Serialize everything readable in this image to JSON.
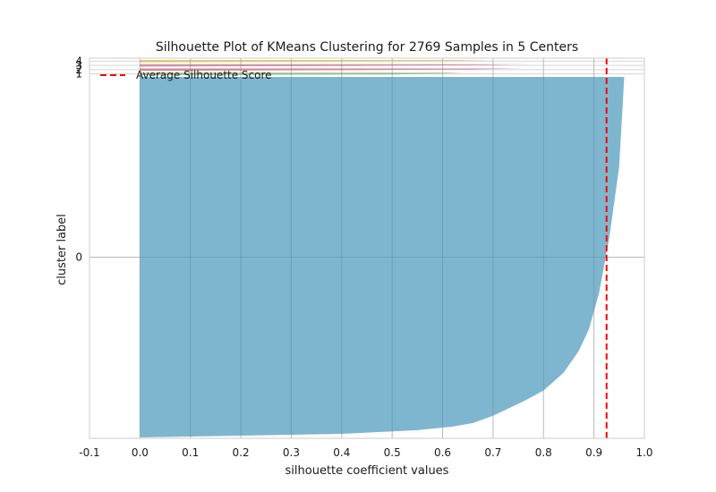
{
  "chart_data": {
    "type": "area",
    "title": "Silhouette Plot of KMeans Clustering for 2769 Samples in 5 Centers",
    "xlabel": "silhouette coefficient values",
    "ylabel": "cluster label",
    "xlim": [
      -0.1,
      1.0
    ],
    "x_ticks": [
      "-0.1",
      "0.0",
      "0.1",
      "0.2",
      "0.3",
      "0.4",
      "0.5",
      "0.6",
      "0.7",
      "0.8",
      "0.9",
      "1.0"
    ],
    "y_tick_labels": [
      "0",
      "1",
      "2",
      "3",
      "4"
    ],
    "grid": true,
    "legend": {
      "position": "upper-left",
      "entries": [
        "Average Silhouette Score"
      ]
    },
    "average_silhouette_score": 0.925,
    "clusters": [
      {
        "label": "0",
        "color": "#7fb6cf",
        "size": 2712,
        "profile": [
          [
            0.0,
            0.0
          ],
          [
            0.2,
            0.005
          ],
          [
            0.4,
            0.01
          ],
          [
            0.55,
            0.02
          ],
          [
            0.62,
            0.03
          ],
          [
            0.66,
            0.04
          ],
          [
            0.68,
            0.05
          ],
          [
            0.7,
            0.06
          ],
          [
            0.73,
            0.08
          ],
          [
            0.76,
            0.1
          ],
          [
            0.8,
            0.13
          ],
          [
            0.84,
            0.18
          ],
          [
            0.87,
            0.24
          ],
          [
            0.89,
            0.3
          ],
          [
            0.91,
            0.4
          ],
          [
            0.93,
            0.55
          ],
          [
            0.95,
            0.75
          ],
          [
            0.96,
            1.0
          ]
        ]
      },
      {
        "label": "1",
        "color": "#8fbf80",
        "size": 10,
        "profile": [
          [
            0.0,
            0.0
          ],
          [
            0.5,
            0.3
          ],
          [
            0.6,
            0.6
          ],
          [
            0.64,
            1.0
          ]
        ]
      },
      {
        "label": "2",
        "color": "#d77a8e",
        "size": 12,
        "profile": [
          [
            0.0,
            0.0
          ],
          [
            0.4,
            0.3
          ],
          [
            0.65,
            0.6
          ],
          [
            0.76,
            1.0
          ]
        ]
      },
      {
        "label": "3",
        "color": "#c98ca3",
        "size": 14,
        "profile": [
          [
            0.0,
            0.0
          ],
          [
            0.4,
            0.3
          ],
          [
            0.66,
            0.6
          ],
          [
            0.77,
            1.0
          ]
        ]
      },
      {
        "label": "4",
        "color": "#e0c66b",
        "size": 21,
        "profile": [
          [
            0.0,
            0.0
          ],
          [
            0.4,
            0.3
          ],
          [
            0.6,
            0.6
          ],
          [
            0.7,
            1.0
          ]
        ]
      }
    ]
  }
}
